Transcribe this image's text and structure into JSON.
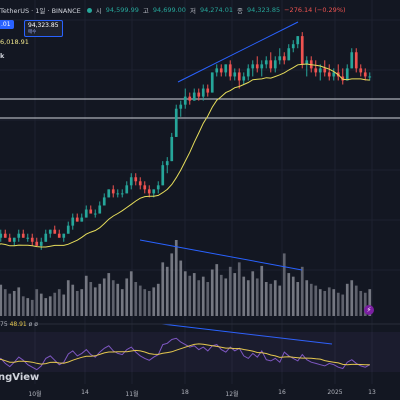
{
  "header": {
    "symbol": "TetherUS · 1일 · BINANCE",
    "open_key": "시",
    "open_val": "94,599.99",
    "high_key": "고",
    "high_val": "94,699.00",
    "low_key": "저",
    "low_val": "94,274.01",
    "close_key": "종",
    "close_val": "94,323.85",
    "change": "−276.14 (−0.29%)"
  },
  "price_box": {
    "left_value": ".01",
    "right_value": "94,323.85",
    "right_sub": "매수"
  },
  "ma_label": "6,018.91",
  "k_label": "k",
  "rsi": {
    "label": "75",
    "value": "48.91",
    "suffix": "ø ø"
  },
  "logo": "ngView",
  "colors": {
    "up": "#26a69a",
    "down": "#ef5350",
    "ma": "#e6dd5b",
    "trend": "#2962ff",
    "bg": "#131722",
    "rsi": "#7e57c2"
  },
  "chart_data": {
    "type": "candlestick",
    "x_labels": [
      "10월",
      "14",
      "11월",
      "18",
      "12월",
      "16",
      "2025",
      "13"
    ],
    "candles": [
      {
        "o": 56,
        "h": 57,
        "l": 55,
        "c": 56
      },
      {
        "o": 56,
        "h": 58,
        "l": 55,
        "c": 57
      },
      {
        "o": 57,
        "h": 58,
        "l": 56,
        "c": 56
      },
      {
        "o": 56,
        "h": 57,
        "l": 55,
        "c": 55
      },
      {
        "o": 55,
        "h": 56,
        "l": 54,
        "c": 56
      },
      {
        "o": 56,
        "h": 58,
        "l": 55,
        "c": 57
      },
      {
        "o": 57,
        "h": 58,
        "l": 56,
        "c": 56
      },
      {
        "o": 56,
        "h": 57,
        "l": 55,
        "c": 56
      },
      {
        "o": 56,
        "h": 57,
        "l": 54,
        "c": 55
      },
      {
        "o": 55,
        "h": 56,
        "l": 54,
        "c": 54
      },
      {
        "o": 54,
        "h": 56,
        "l": 53,
        "c": 55
      },
      {
        "o": 55,
        "h": 58,
        "l": 55,
        "c": 57
      },
      {
        "o": 57,
        "h": 58,
        "l": 56,
        "c": 58
      },
      {
        "o": 58,
        "h": 59,
        "l": 57,
        "c": 57
      },
      {
        "o": 57,
        "h": 58,
        "l": 56,
        "c": 56
      },
      {
        "o": 56,
        "h": 57,
        "l": 55,
        "c": 57
      },
      {
        "o": 57,
        "h": 60,
        "l": 57,
        "c": 59
      },
      {
        "o": 59,
        "h": 62,
        "l": 58,
        "c": 61
      },
      {
        "o": 61,
        "h": 62,
        "l": 60,
        "c": 60
      },
      {
        "o": 60,
        "h": 62,
        "l": 60,
        "c": 61
      },
      {
        "o": 61,
        "h": 64,
        "l": 61,
        "c": 63
      },
      {
        "o": 63,
        "h": 64,
        "l": 62,
        "c": 62
      },
      {
        "o": 62,
        "h": 63,
        "l": 61,
        "c": 62
      },
      {
        "o": 62,
        "h": 65,
        "l": 62,
        "c": 64
      },
      {
        "o": 64,
        "h": 67,
        "l": 64,
        "c": 66
      },
      {
        "o": 66,
        "h": 68,
        "l": 66,
        "c": 68
      },
      {
        "o": 68,
        "h": 69,
        "l": 66,
        "c": 67
      },
      {
        "o": 67,
        "h": 68,
        "l": 66,
        "c": 67
      },
      {
        "o": 67,
        "h": 68,
        "l": 66,
        "c": 67
      },
      {
        "o": 67,
        "h": 70,
        "l": 67,
        "c": 69
      },
      {
        "o": 69,
        "h": 72,
        "l": 68,
        "c": 71
      },
      {
        "o": 71,
        "h": 72,
        "l": 69,
        "c": 70
      },
      {
        "o": 70,
        "h": 71,
        "l": 68,
        "c": 69
      },
      {
        "o": 69,
        "h": 70,
        "l": 67,
        "c": 68
      },
      {
        "o": 68,
        "h": 69,
        "l": 66,
        "c": 67
      },
      {
        "o": 67,
        "h": 68,
        "l": 66,
        "c": 68
      },
      {
        "o": 68,
        "h": 70,
        "l": 67,
        "c": 69
      },
      {
        "o": 69,
        "h": 75,
        "l": 69,
        "c": 74
      },
      {
        "o": 74,
        "h": 76,
        "l": 72,
        "c": 75
      },
      {
        "o": 75,
        "h": 82,
        "l": 75,
        "c": 81
      },
      {
        "o": 81,
        "h": 89,
        "l": 81,
        "c": 88
      },
      {
        "o": 88,
        "h": 90,
        "l": 86,
        "c": 89
      },
      {
        "o": 89,
        "h": 93,
        "l": 88,
        "c": 91
      },
      {
        "o": 91,
        "h": 92,
        "l": 89,
        "c": 90
      },
      {
        "o": 90,
        "h": 93,
        "l": 90,
        "c": 92
      },
      {
        "o": 92,
        "h": 93,
        "l": 90,
        "c": 91
      },
      {
        "o": 91,
        "h": 94,
        "l": 90,
        "c": 93
      },
      {
        "o": 93,
        "h": 94,
        "l": 91,
        "c": 92
      },
      {
        "o": 92,
        "h": 97,
        "l": 92,
        "c": 97
      },
      {
        "o": 97,
        "h": 99,
        "l": 96,
        "c": 98
      },
      {
        "o": 98,
        "h": 99,
        "l": 96,
        "c": 97
      },
      {
        "o": 97,
        "h": 99,
        "l": 96,
        "c": 99
      },
      {
        "o": 99,
        "h": 100,
        "l": 95,
        "c": 96
      },
      {
        "o": 96,
        "h": 98,
        "l": 95,
        "c": 97
      },
      {
        "o": 97,
        "h": 98,
        "l": 93,
        "c": 95
      },
      {
        "o": 95,
        "h": 97,
        "l": 94,
        "c": 96
      },
      {
        "o": 96,
        "h": 99,
        "l": 95,
        "c": 98
      },
      {
        "o": 98,
        "h": 100,
        "l": 96,
        "c": 99
      },
      {
        "o": 99,
        "h": 101,
        "l": 97,
        "c": 98
      },
      {
        "o": 98,
        "h": 100,
        "l": 96,
        "c": 99
      },
      {
        "o": 99,
        "h": 101,
        "l": 98,
        "c": 100
      },
      {
        "o": 100,
        "h": 102,
        "l": 97,
        "c": 98
      },
      {
        "o": 98,
        "h": 101,
        "l": 97,
        "c": 100
      },
      {
        "o": 100,
        "h": 103,
        "l": 99,
        "c": 101
      },
      {
        "o": 101,
        "h": 102,
        "l": 99,
        "c": 100
      },
      {
        "o": 100,
        "h": 104,
        "l": 100,
        "c": 103
      },
      {
        "o": 103,
        "h": 105,
        "l": 102,
        "c": 104
      },
      {
        "o": 104,
        "h": 106,
        "l": 103,
        "c": 106
      },
      {
        "o": 106,
        "h": 107,
        "l": 98,
        "c": 99
      },
      {
        "o": 99,
        "h": 101,
        "l": 96,
        "c": 100
      },
      {
        "o": 100,
        "h": 101,
        "l": 97,
        "c": 98
      },
      {
        "o": 98,
        "h": 100,
        "l": 96,
        "c": 97
      },
      {
        "o": 97,
        "h": 99,
        "l": 95,
        "c": 98
      },
      {
        "o": 98,
        "h": 100,
        "l": 96,
        "c": 97
      },
      {
        "o": 97,
        "h": 99,
        "l": 95,
        "c": 96
      },
      {
        "o": 96,
        "h": 98,
        "l": 95,
        "c": 97
      },
      {
        "o": 97,
        "h": 99,
        "l": 95,
        "c": 96
      },
      {
        "o": 96,
        "h": 98,
        "l": 94,
        "c": 95
      },
      {
        "o": 95,
        "h": 99,
        "l": 95,
        "c": 98
      },
      {
        "o": 98,
        "h": 103,
        "l": 98,
        "c": 102
      },
      {
        "o": 102,
        "h": 103,
        "l": 97,
        "c": 98
      },
      {
        "o": 98,
        "h": 99,
        "l": 96,
        "c": 97
      },
      {
        "o": 97,
        "h": 98,
        "l": 95,
        "c": 96
      },
      {
        "o": 96,
        "h": 97,
        "l": 95,
        "c": 96
      }
    ],
    "volume": [
      40,
      35,
      30,
      25,
      28,
      32,
      22,
      20,
      18,
      30,
      25,
      20,
      22,
      26,
      30,
      24,
      40,
      35,
      28,
      30,
      45,
      38,
      32,
      36,
      42,
      48,
      40,
      36,
      30,
      42,
      50,
      38,
      34,
      30,
      28,
      32,
      36,
      60,
      55,
      70,
      85,
      62,
      50,
      45,
      48,
      40,
      44,
      38,
      52,
      58,
      46,
      42,
      55,
      48,
      60,
      44,
      40,
      50,
      42,
      56,
      38,
      36,
      40,
      34,
      70,
      48,
      44,
      38,
      55,
      40,
      36,
      34,
      30,
      28,
      32,
      30,
      26,
      24,
      36,
      40,
      34,
      28,
      26,
      30
    ],
    "rsi": [
      55,
      58,
      50,
      45,
      52,
      60,
      55,
      48,
      44,
      40,
      46,
      58,
      62,
      55,
      48,
      52,
      65,
      70,
      62,
      66,
      72,
      64,
      60,
      68,
      74,
      78,
      70,
      66,
      64,
      72,
      76,
      68,
      62,
      58,
      55,
      60,
      64,
      80,
      82,
      88,
      90,
      84,
      80,
      76,
      78,
      72,
      76,
      70,
      78,
      80,
      72,
      68,
      76,
      70,
      74,
      62,
      58,
      66,
      60,
      70,
      56,
      54,
      58,
      52,
      68,
      62,
      58,
      54,
      64,
      56,
      52,
      50,
      48,
      46,
      50,
      48,
      44,
      42,
      52,
      56,
      50,
      46,
      44,
      48
    ],
    "ylim": [
      48,
      110
    ]
  }
}
